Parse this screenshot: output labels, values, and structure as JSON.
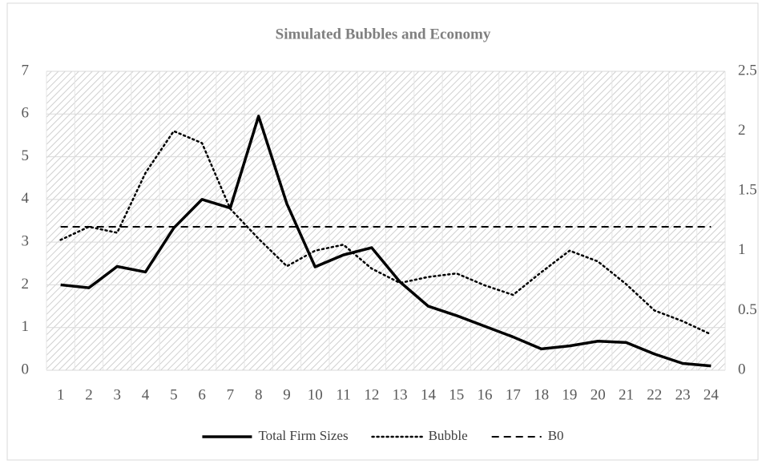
{
  "chart_data": {
    "type": "line",
    "title": "Simulated Bubbles and Economy",
    "categories": [
      "1",
      "2",
      "3",
      "4",
      "5",
      "6",
      "7",
      "8",
      "9",
      "10",
      "11",
      "12",
      "13",
      "14",
      "15",
      "16",
      "17",
      "18",
      "19",
      "20",
      "21",
      "22",
      "23",
      "24"
    ],
    "series": [
      {
        "name": "Total Firm Sizes",
        "color": "#000000",
        "style": "solid",
        "axis": "y",
        "values": [
          2.0,
          1.93,
          2.43,
          2.3,
          3.33,
          4.0,
          3.8,
          5.95,
          3.9,
          2.42,
          2.7,
          2.87,
          2.07,
          1.5,
          1.28,
          1.03,
          0.78,
          0.5,
          0.57,
          0.68,
          0.65,
          0.38,
          0.16,
          0.1
        ]
      },
      {
        "name": "Bubble",
        "color": "#000000",
        "style": "dotted",
        "axis": "y2",
        "values": [
          1.09,
          1.2,
          1.15,
          1.65,
          2.0,
          1.9,
          1.35,
          1.1,
          0.87,
          1.0,
          1.05,
          0.85,
          0.73,
          0.78,
          0.81,
          0.71,
          0.63,
          0.82,
          1.0,
          0.91,
          0.72,
          0.5,
          0.41,
          0.3
        ]
      },
      {
        "name": "B0",
        "color": "#000000",
        "style": "dashed",
        "axis": "y2",
        "values": [
          1.2,
          1.2,
          1.2,
          1.2,
          1.2,
          1.2,
          1.2,
          1.2,
          1.2,
          1.2,
          1.2,
          1.2,
          1.2,
          1.2,
          1.2,
          1.2,
          1.2,
          1.2,
          1.2,
          1.2,
          1.2,
          1.2,
          1.2,
          1.2
        ]
      }
    ],
    "ylim": [
      0,
      7
    ],
    "yticks": [
      0,
      1,
      2,
      3,
      4,
      5,
      6,
      7
    ],
    "y2lim": [
      0,
      2.5
    ],
    "y2ticks": [
      0,
      0.5,
      1,
      1.5,
      2,
      2.5
    ],
    "grid": true,
    "legend": "bottom"
  }
}
